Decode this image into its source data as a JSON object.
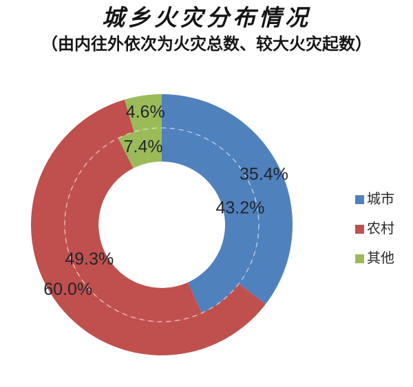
{
  "header": {
    "title": "城乡火灾分布情况",
    "subtitle": "（由内往外依次为火灾总数、较大火灾起数）"
  },
  "chart_data": {
    "type": "pie",
    "subtype": "doughnut-double-ring",
    "title": "城乡火灾分布情况",
    "subtitle": "（由内往外依次为火灾总数、较大火灾起数）",
    "categories": [
      "城市",
      "农村",
      "其他"
    ],
    "series": [
      {
        "name": "火灾总数",
        "ring": "inner",
        "values": [
          43.2,
          49.3,
          7.4
        ],
        "labels": [
          "43.2%",
          "49.3%",
          "7.4%"
        ]
      },
      {
        "name": "较大火灾起数",
        "ring": "outer",
        "values": [
          35.4,
          60.0,
          4.6
        ],
        "labels": [
          "35.4%",
          "60.0%",
          "4.6%"
        ]
      }
    ],
    "colors": [
      "#4F81BD",
      "#C0504D",
      "#9BBB59"
    ],
    "label_color": "#22252c",
    "ring_separator_color": "rgba(255,255,255,0.55)",
    "legend": {
      "position": "right",
      "entries": [
        "城市",
        "农村",
        "其他"
      ]
    },
    "start_angle_deg": 0,
    "direction": "clockwise"
  },
  "legend": {
    "items": [
      {
        "label": "城市",
        "color": "#4F81BD"
      },
      {
        "label": "农村",
        "color": "#C0504D"
      },
      {
        "label": "其他",
        "color": "#9BBB59"
      }
    ]
  }
}
